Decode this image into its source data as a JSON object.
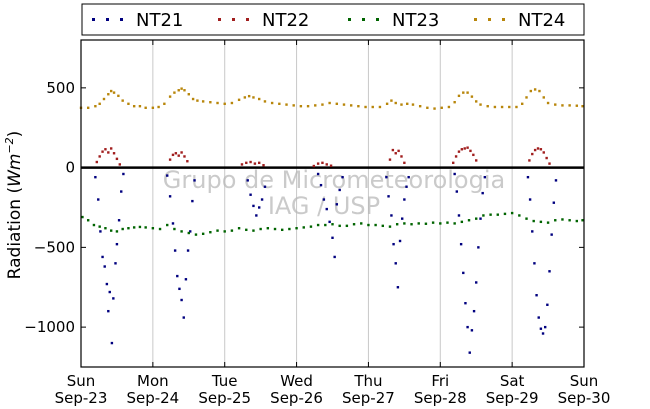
{
  "chart_data": {
    "type": "scatter",
    "ylabel": "Radiation ($Wm^{-2}$)",
    "ylabel_parts": {
      "text": "Radiation (",
      "unit": "Wm",
      "exp": "−2",
      "close": ")"
    },
    "watermark_lines": [
      "Grupo de Micrometeorologia",
      "IAG / USP"
    ],
    "ylim": [
      -1250,
      800
    ],
    "yticks": [
      {
        "value": 500,
        "label": "500"
      },
      {
        "value": 0,
        "label": "0"
      },
      {
        "value": -500,
        "label": "−500"
      },
      {
        "value": -1000,
        "label": "−1000"
      }
    ],
    "xlim": [
      0,
      7
    ],
    "xticks": [
      {
        "value": 0,
        "day": "Sun",
        "date": "Sep-23"
      },
      {
        "value": 1,
        "day": "Mon",
        "date": "Sep-24"
      },
      {
        "value": 2,
        "day": "Tue",
        "date": "Sep-25"
      },
      {
        "value": 3,
        "day": "Wed",
        "date": "Sep-26"
      },
      {
        "value": 4,
        "day": "Thu",
        "date": "Sep-27"
      },
      {
        "value": 5,
        "day": "Fri",
        "date": "Sep-28"
      },
      {
        "value": 6,
        "day": "Sat",
        "date": "Sep-29"
      },
      {
        "value": 7,
        "day": "Sun",
        "date": "Sep-30"
      }
    ],
    "grid": "vertical",
    "legend_position": "top",
    "zero_line": true,
    "series": [
      {
        "name": "NT21",
        "color": "#00007f",
        "points": [
          [
            0.2,
            -60
          ],
          [
            0.24,
            -200
          ],
          [
            0.27,
            -400
          ],
          [
            0.3,
            -560
          ],
          [
            0.33,
            -620
          ],
          [
            0.36,
            -730
          ],
          [
            0.38,
            -900
          ],
          [
            0.4,
            -780
          ],
          [
            0.43,
            -1100
          ],
          [
            0.45,
            -820
          ],
          [
            0.48,
            -600
          ],
          [
            0.5,
            -480
          ],
          [
            0.53,
            -330
          ],
          [
            0.56,
            -150
          ],
          [
            0.59,
            -40
          ],
          [
            1.2,
            -50
          ],
          [
            1.24,
            -180
          ],
          [
            1.28,
            -350
          ],
          [
            1.31,
            -520
          ],
          [
            1.34,
            -680
          ],
          [
            1.37,
            -760
          ],
          [
            1.4,
            -830
          ],
          [
            1.43,
            -940
          ],
          [
            1.46,
            -700
          ],
          [
            1.49,
            -520
          ],
          [
            1.52,
            -400
          ],
          [
            1.55,
            -210
          ],
          [
            1.58,
            -80
          ],
          [
            2.32,
            -80
          ],
          [
            2.36,
            -170
          ],
          [
            2.4,
            -240
          ],
          [
            2.44,
            -300
          ],
          [
            2.48,
            -250
          ],
          [
            2.52,
            -200
          ],
          [
            2.56,
            -120
          ],
          [
            3.3,
            -40
          ],
          [
            3.34,
            -110
          ],
          [
            3.38,
            -200
          ],
          [
            3.42,
            -260
          ],
          [
            3.46,
            -340
          ],
          [
            3.5,
            -440
          ],
          [
            3.53,
            -560
          ],
          [
            3.56,
            -230
          ],
          [
            3.6,
            -140
          ],
          [
            3.64,
            -60
          ],
          [
            4.25,
            -60
          ],
          [
            4.28,
            -180
          ],
          [
            4.32,
            -300
          ],
          [
            4.35,
            -480
          ],
          [
            4.38,
            -600
          ],
          [
            4.41,
            -750
          ],
          [
            4.44,
            -460
          ],
          [
            4.47,
            -320
          ],
          [
            4.5,
            -200
          ],
          [
            4.53,
            -120
          ],
          [
            4.56,
            -60
          ],
          [
            5.2,
            -40
          ],
          [
            5.23,
            -150
          ],
          [
            5.26,
            -300
          ],
          [
            5.29,
            -480
          ],
          [
            5.32,
            -660
          ],
          [
            5.35,
            -850
          ],
          [
            5.38,
            -1000
          ],
          [
            5.41,
            -1160
          ],
          [
            5.44,
            -1020
          ],
          [
            5.47,
            -900
          ],
          [
            5.5,
            -720
          ],
          [
            5.53,
            -500
          ],
          [
            5.56,
            -320
          ],
          [
            5.59,
            -160
          ],
          [
            5.62,
            -60
          ],
          [
            6.22,
            -60
          ],
          [
            6.25,
            -200
          ],
          [
            6.28,
            -400
          ],
          [
            6.31,
            -600
          ],
          [
            6.34,
            -800
          ],
          [
            6.37,
            -940
          ],
          [
            6.4,
            -1010
          ],
          [
            6.43,
            -1040
          ],
          [
            6.46,
            -1000
          ],
          [
            6.49,
            -860
          ],
          [
            6.52,
            -650
          ],
          [
            6.55,
            -420
          ],
          [
            6.58,
            -220
          ],
          [
            6.61,
            -80
          ]
        ]
      },
      {
        "name": "NT22",
        "color": "#a11e1e",
        "points": [
          [
            0.22,
            35
          ],
          [
            0.26,
            70
          ],
          [
            0.3,
            100
          ],
          [
            0.34,
            115
          ],
          [
            0.38,
            95
          ],
          [
            0.42,
            120
          ],
          [
            0.46,
            90
          ],
          [
            0.5,
            55
          ],
          [
            0.54,
            20
          ],
          [
            1.24,
            50
          ],
          [
            1.28,
            80
          ],
          [
            1.32,
            90
          ],
          [
            1.36,
            75
          ],
          [
            1.4,
            95
          ],
          [
            1.44,
            70
          ],
          [
            1.48,
            40
          ],
          [
            2.24,
            20
          ],
          [
            2.3,
            30
          ],
          [
            2.36,
            35
          ],
          [
            2.42,
            25
          ],
          [
            2.48,
            30
          ],
          [
            2.54,
            15
          ],
          [
            3.24,
            10
          ],
          [
            3.3,
            25
          ],
          [
            3.36,
            30
          ],
          [
            3.42,
            20
          ],
          [
            3.48,
            12
          ],
          [
            4.3,
            50
          ],
          [
            4.34,
            110
          ],
          [
            4.38,
            90
          ],
          [
            4.42,
            105
          ],
          [
            4.46,
            70
          ],
          [
            4.5,
            30
          ],
          [
            5.18,
            30
          ],
          [
            5.22,
            70
          ],
          [
            5.26,
            100
          ],
          [
            5.3,
            115
          ],
          [
            5.34,
            120
          ],
          [
            5.38,
            125
          ],
          [
            5.42,
            105
          ],
          [
            5.46,
            80
          ],
          [
            5.5,
            45
          ],
          [
            6.24,
            45
          ],
          [
            6.28,
            85
          ],
          [
            6.32,
            110
          ],
          [
            6.36,
            120
          ],
          [
            6.4,
            115
          ],
          [
            6.44,
            95
          ],
          [
            6.48,
            60
          ],
          [
            6.52,
            25
          ]
        ]
      },
      {
        "name": "NT23",
        "color": "#006400",
        "points": [
          [
            0.02,
            -310
          ],
          [
            0.1,
            -330
          ],
          [
            0.18,
            -360
          ],
          [
            0.26,
            -370
          ],
          [
            0.34,
            -380
          ],
          [
            0.42,
            -395
          ],
          [
            0.5,
            -400
          ],
          [
            0.58,
            -385
          ],
          [
            0.66,
            -380
          ],
          [
            0.74,
            -375
          ],
          [
            0.82,
            -372
          ],
          [
            0.9,
            -375
          ],
          [
            1.0,
            -380
          ],
          [
            1.1,
            -385
          ],
          [
            1.2,
            -360
          ],
          [
            1.3,
            -385
          ],
          [
            1.4,
            -400
          ],
          [
            1.5,
            -410
          ],
          [
            1.6,
            -420
          ],
          [
            1.7,
            -415
          ],
          [
            1.8,
            -405
          ],
          [
            1.9,
            -395
          ],
          [
            2.0,
            -400
          ],
          [
            2.1,
            -395
          ],
          [
            2.2,
            -380
          ],
          [
            2.3,
            -390
          ],
          [
            2.4,
            -395
          ],
          [
            2.5,
            -385
          ],
          [
            2.6,
            -380
          ],
          [
            2.7,
            -385
          ],
          [
            2.8,
            -390
          ],
          [
            2.9,
            -385
          ],
          [
            3.0,
            -380
          ],
          [
            3.1,
            -375
          ],
          [
            3.2,
            -370
          ],
          [
            3.3,
            -360
          ],
          [
            3.4,
            -360
          ],
          [
            3.5,
            -355
          ],
          [
            3.6,
            -365
          ],
          [
            3.7,
            -365
          ],
          [
            3.8,
            -355
          ],
          [
            3.9,
            -350
          ],
          [
            4.0,
            -360
          ],
          [
            4.1,
            -360
          ],
          [
            4.2,
            -365
          ],
          [
            4.3,
            -370
          ],
          [
            4.4,
            -355
          ],
          [
            4.5,
            -350
          ],
          [
            4.6,
            -355
          ],
          [
            4.7,
            -350
          ],
          [
            4.8,
            -352
          ],
          [
            4.9,
            -345
          ],
          [
            5.0,
            -350
          ],
          [
            5.1,
            -345
          ],
          [
            5.2,
            -350
          ],
          [
            5.3,
            -340
          ],
          [
            5.4,
            -330
          ],
          [
            5.5,
            -320
          ],
          [
            5.6,
            -300
          ],
          [
            5.7,
            -295
          ],
          [
            5.8,
            -295
          ],
          [
            5.9,
            -290
          ],
          [
            6.0,
            -285
          ],
          [
            6.1,
            -300
          ],
          [
            6.2,
            -320
          ],
          [
            6.3,
            -335
          ],
          [
            6.4,
            -340
          ],
          [
            6.5,
            -345
          ],
          [
            6.6,
            -330
          ],
          [
            6.7,
            -325
          ],
          [
            6.8,
            -330
          ],
          [
            6.9,
            -335
          ],
          [
            6.98,
            -330
          ]
        ]
      },
      {
        "name": "NT24",
        "color": "#b8860b",
        "points": [
          [
            0.0,
            375
          ],
          [
            0.1,
            375
          ],
          [
            0.2,
            385
          ],
          [
            0.26,
            400
          ],
          [
            0.32,
            430
          ],
          [
            0.38,
            460
          ],
          [
            0.42,
            480
          ],
          [
            0.46,
            470
          ],
          [
            0.52,
            450
          ],
          [
            0.58,
            420
          ],
          [
            0.66,
            400
          ],
          [
            0.74,
            385
          ],
          [
            0.82,
            385
          ],
          [
            0.9,
            375
          ],
          [
            1.0,
            375
          ],
          [
            1.08,
            380
          ],
          [
            1.16,
            400
          ],
          [
            1.24,
            445
          ],
          [
            1.3,
            470
          ],
          [
            1.36,
            485
          ],
          [
            1.4,
            495
          ],
          [
            1.44,
            485
          ],
          [
            1.5,
            460
          ],
          [
            1.56,
            430
          ],
          [
            1.62,
            420
          ],
          [
            1.7,
            415
          ],
          [
            1.8,
            410
          ],
          [
            1.9,
            405
          ],
          [
            2.0,
            400
          ],
          [
            2.1,
            405
          ],
          [
            2.2,
            425
          ],
          [
            2.28,
            440
          ],
          [
            2.34,
            448
          ],
          [
            2.4,
            440
          ],
          [
            2.48,
            430
          ],
          [
            2.56,
            415
          ],
          [
            2.66,
            405
          ],
          [
            2.76,
            400
          ],
          [
            2.86,
            395
          ],
          [
            2.96,
            390
          ],
          [
            3.06,
            385
          ],
          [
            3.16,
            385
          ],
          [
            3.26,
            390
          ],
          [
            3.36,
            395
          ],
          [
            3.46,
            405
          ],
          [
            3.56,
            400
          ],
          [
            3.66,
            395
          ],
          [
            3.76,
            390
          ],
          [
            3.86,
            385
          ],
          [
            3.96,
            380
          ],
          [
            4.06,
            380
          ],
          [
            4.16,
            380
          ],
          [
            4.26,
            400
          ],
          [
            4.32,
            420
          ],
          [
            4.38,
            405
          ],
          [
            4.46,
            395
          ],
          [
            4.54,
            400
          ],
          [
            4.62,
            395
          ],
          [
            4.72,
            385
          ],
          [
            4.82,
            375
          ],
          [
            4.92,
            370
          ],
          [
            5.02,
            375
          ],
          [
            5.12,
            380
          ],
          [
            5.2,
            410
          ],
          [
            5.26,
            450
          ],
          [
            5.32,
            470
          ],
          [
            5.38,
            470
          ],
          [
            5.44,
            445
          ],
          [
            5.5,
            415
          ],
          [
            5.56,
            395
          ],
          [
            5.66,
            385
          ],
          [
            5.76,
            380
          ],
          [
            5.86,
            380
          ],
          [
            5.96,
            380
          ],
          [
            6.06,
            380
          ],
          [
            6.14,
            400
          ],
          [
            6.2,
            440
          ],
          [
            6.26,
            480
          ],
          [
            6.32,
            490
          ],
          [
            6.38,
            480
          ],
          [
            6.44,
            440
          ],
          [
            6.5,
            405
          ],
          [
            6.6,
            395
          ],
          [
            6.7,
            390
          ],
          [
            6.8,
            390
          ],
          [
            6.9,
            388
          ],
          [
            6.98,
            385
          ]
        ]
      }
    ]
  }
}
